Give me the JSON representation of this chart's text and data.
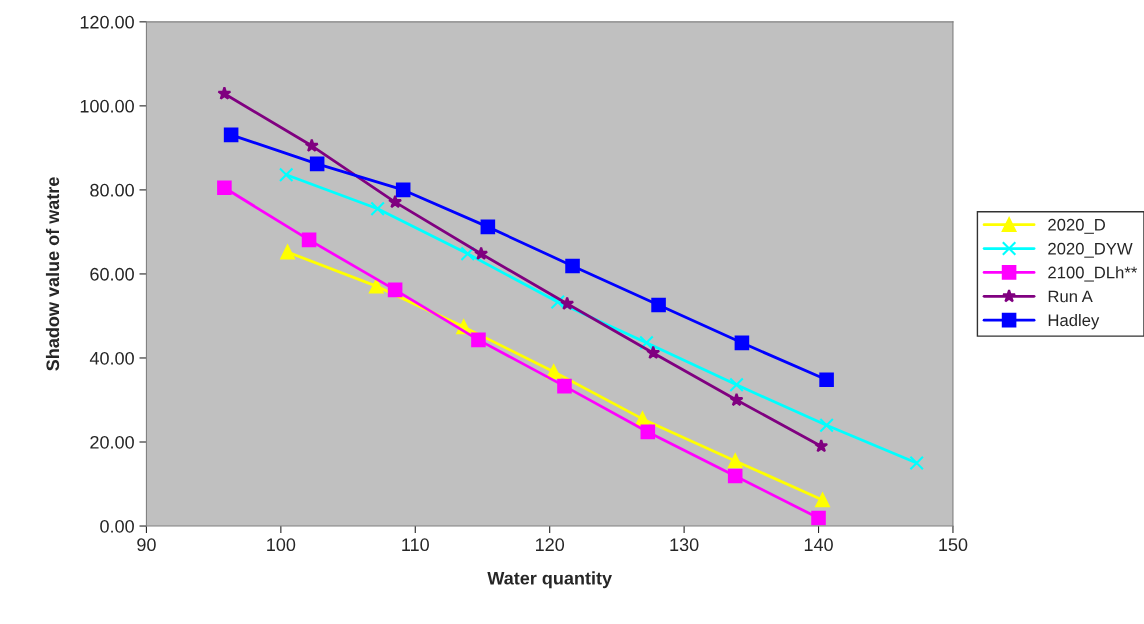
{
  "chart_data": {
    "type": "line",
    "xlabel": "Water quantity",
    "ylabel": "Shadow value of watre",
    "xlim": [
      90,
      150
    ],
    "xticks": [
      90,
      100,
      110,
      120,
      130,
      140,
      150
    ],
    "ylim": [
      0,
      120
    ],
    "yticks": [
      {
        "value": 0,
        "label": "0.00"
      },
      {
        "value": 20,
        "label": "20.00"
      },
      {
        "value": 40,
        "label": "40.00"
      },
      {
        "value": 60,
        "label": "60.00"
      },
      {
        "value": 80,
        "label": "80.00"
      },
      {
        "value": 100,
        "label": "100.00"
      },
      {
        "value": 120,
        "label": "120.00"
      }
    ],
    "grid": false,
    "legend": "right",
    "series": [
      {
        "name": "2020_D",
        "color": "#ffff00",
        "marker": "triangle",
        "x": [
          100.5,
          107.1,
          113.6,
          120.3,
          126.9,
          133.8,
          140.3
        ],
        "values": [
          65.2,
          57.1,
          47.4,
          36.7,
          25.5,
          15.5,
          6.2
        ]
      },
      {
        "name": "2020_DYW",
        "color": "#00ffff",
        "marker": "cross",
        "x": [
          100.4,
          107.2,
          113.9,
          120.6,
          127.2,
          133.9,
          140.6,
          147.3
        ],
        "values": [
          83.6,
          75.5,
          64.8,
          53.3,
          43.6,
          33.6,
          24.0,
          15.0
        ]
      },
      {
        "name": "2100_DLh**",
        "color": "#ff00ff",
        "marker": "square",
        "x": [
          95.8,
          102.1,
          108.5,
          114.7,
          121.1,
          127.3,
          133.8,
          140.0
        ],
        "values": [
          80.5,
          68.1,
          56.2,
          44.3,
          33.3,
          22.4,
          11.9,
          1.9
        ]
      },
      {
        "name": "Run A",
        "color": "#800080",
        "marker": "star",
        "x": [
          95.8,
          102.3,
          108.5,
          114.9,
          121.3,
          127.7,
          133.9,
          140.2
        ],
        "values": [
          102.9,
          90.5,
          77.1,
          64.8,
          52.9,
          41.2,
          30.0,
          19.0
        ]
      },
      {
        "name": "Hadley",
        "color": "#0000ff",
        "marker": "square",
        "x": [
          96.3,
          102.7,
          109.1,
          115.4,
          121.7,
          128.1,
          134.3,
          140.6
        ],
        "values": [
          93.1,
          86.2,
          80.0,
          71.2,
          61.9,
          52.6,
          43.6,
          34.8
        ]
      }
    ]
  }
}
